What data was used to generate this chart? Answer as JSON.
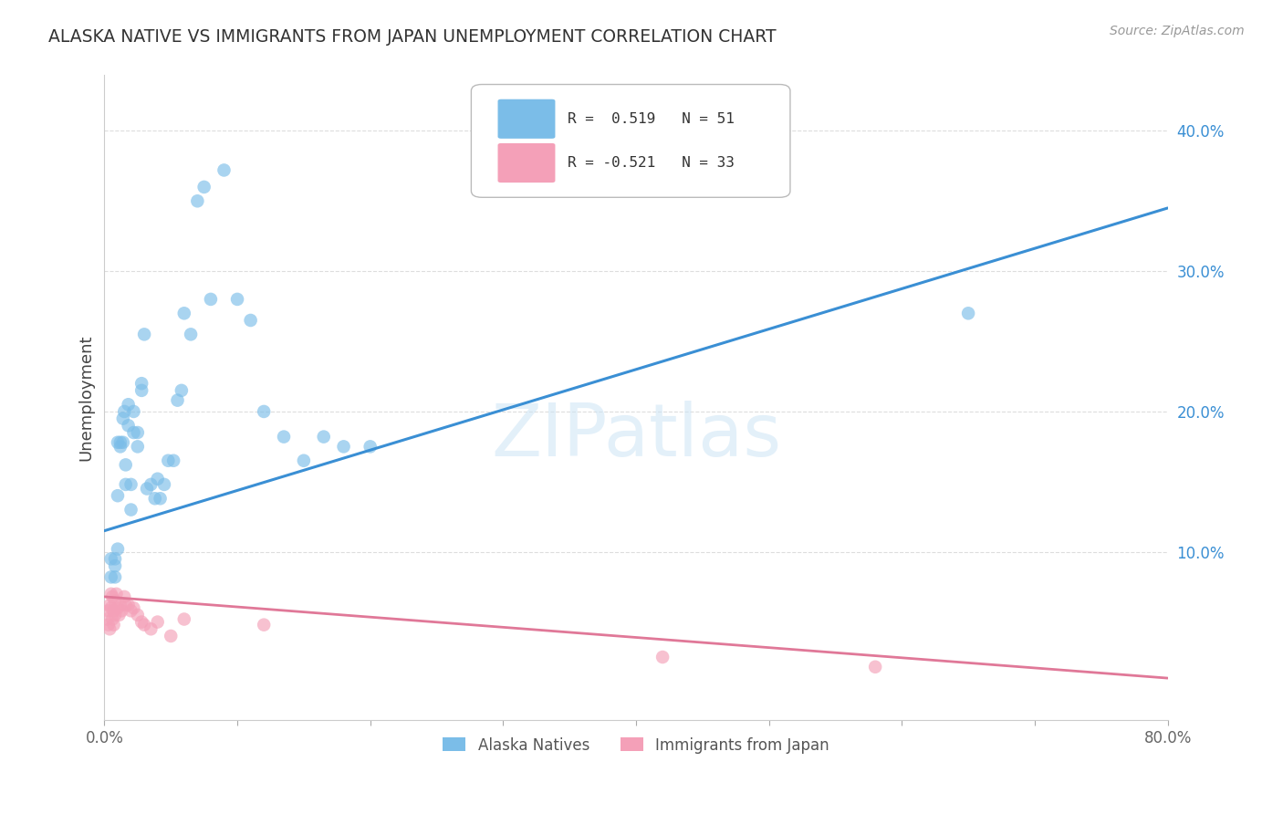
{
  "title": "ALASKA NATIVE VS IMMIGRANTS FROM JAPAN UNEMPLOYMENT CORRELATION CHART",
  "source": "Source: ZipAtlas.com",
  "ylabel_label": "Unemployment",
  "ytick_labels": [
    "10.0%",
    "20.0%",
    "30.0%",
    "40.0%"
  ],
  "ytick_values": [
    0.1,
    0.2,
    0.3,
    0.4
  ],
  "xlim": [
    0.0,
    0.8
  ],
  "ylim": [
    -0.02,
    0.44
  ],
  "legend1_text": "R =  0.519   N = 51",
  "legend2_text": "R = -0.521   N = 33",
  "blue_color": "#7bbde8",
  "pink_color": "#f4a0b8",
  "blue_line_color": "#3a8fd4",
  "pink_line_color": "#e07898",
  "watermark": "ZIPatlas",
  "background_color": "#ffffff",
  "blue_scatter_x": [
    0.005,
    0.005,
    0.008,
    0.008,
    0.008,
    0.01,
    0.01,
    0.01,
    0.012,
    0.012,
    0.014,
    0.014,
    0.015,
    0.016,
    0.016,
    0.018,
    0.018,
    0.02,
    0.02,
    0.022,
    0.022,
    0.025,
    0.025,
    0.028,
    0.028,
    0.03,
    0.032,
    0.035,
    0.038,
    0.04,
    0.042,
    0.045,
    0.048,
    0.052,
    0.055,
    0.058,
    0.06,
    0.065,
    0.07,
    0.075,
    0.08,
    0.09,
    0.1,
    0.11,
    0.12,
    0.135,
    0.15,
    0.165,
    0.18,
    0.2,
    0.65
  ],
  "blue_scatter_y": [
    0.095,
    0.082,
    0.09,
    0.082,
    0.095,
    0.14,
    0.178,
    0.102,
    0.175,
    0.178,
    0.178,
    0.195,
    0.2,
    0.148,
    0.162,
    0.19,
    0.205,
    0.13,
    0.148,
    0.2,
    0.185,
    0.175,
    0.185,
    0.22,
    0.215,
    0.255,
    0.145,
    0.148,
    0.138,
    0.152,
    0.138,
    0.148,
    0.165,
    0.165,
    0.208,
    0.215,
    0.27,
    0.255,
    0.35,
    0.36,
    0.28,
    0.372,
    0.28,
    0.265,
    0.2,
    0.182,
    0.165,
    0.182,
    0.175,
    0.175,
    0.27
  ],
  "pink_scatter_x": [
    0.002,
    0.003,
    0.003,
    0.004,
    0.004,
    0.005,
    0.005,
    0.006,
    0.006,
    0.007,
    0.007,
    0.008,
    0.008,
    0.009,
    0.01,
    0.011,
    0.012,
    0.013,
    0.015,
    0.016,
    0.018,
    0.02,
    0.022,
    0.025,
    0.028,
    0.03,
    0.035,
    0.04,
    0.05,
    0.06,
    0.12,
    0.42,
    0.58
  ],
  "pink_scatter_y": [
    0.052,
    0.058,
    0.048,
    0.062,
    0.045,
    0.07,
    0.06,
    0.068,
    0.052,
    0.058,
    0.048,
    0.065,
    0.055,
    0.07,
    0.06,
    0.055,
    0.062,
    0.058,
    0.068,
    0.062,
    0.062,
    0.058,
    0.06,
    0.055,
    0.05,
    0.048,
    0.045,
    0.05,
    0.04,
    0.052,
    0.048,
    0.025,
    0.018
  ],
  "blue_line_x0": 0.0,
  "blue_line_y0": 0.115,
  "blue_line_x1": 0.8,
  "blue_line_y1": 0.345,
  "pink_line_x0": 0.0,
  "pink_line_y0": 0.068,
  "pink_line_x1": 0.8,
  "pink_line_y1": 0.01
}
